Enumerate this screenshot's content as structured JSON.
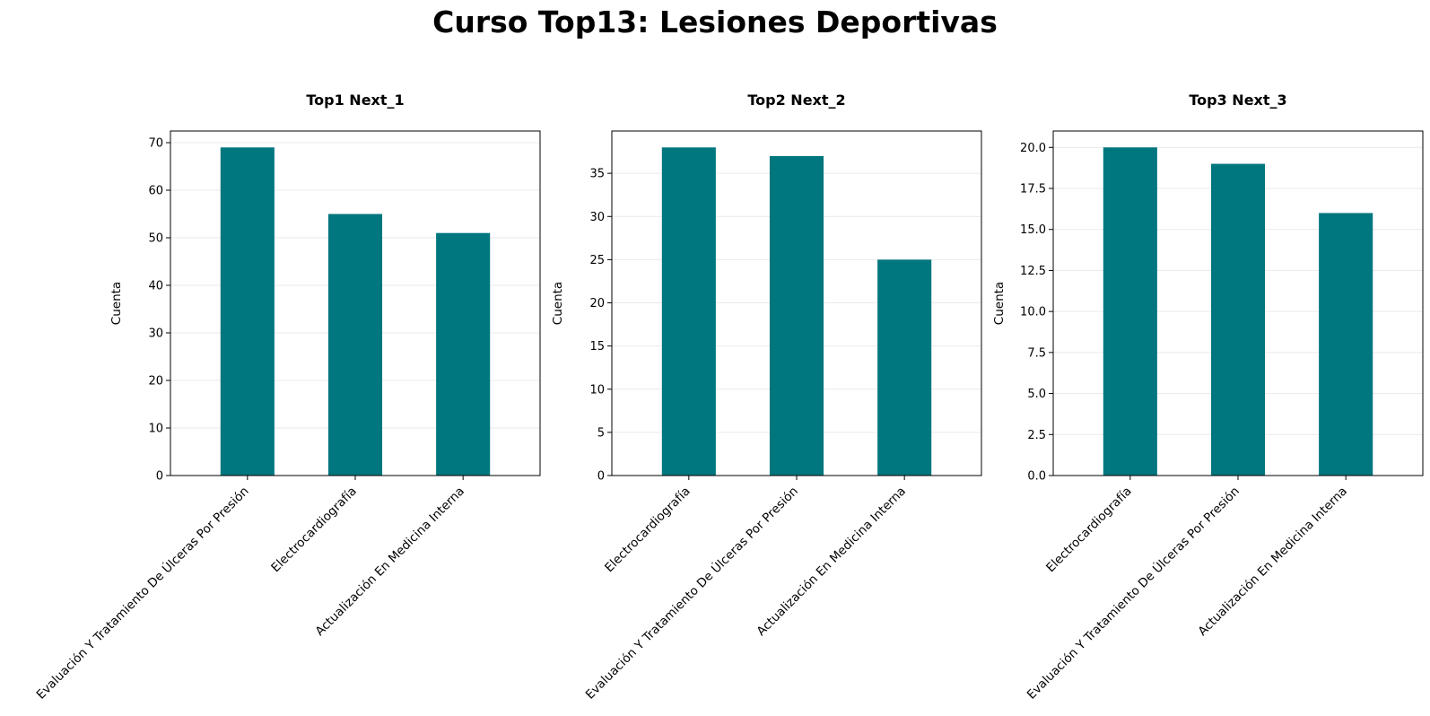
{
  "figure": {
    "suptitle": "Curso Top13: Lesiones Deportivas",
    "bar_color": "#00767e"
  },
  "chart_data": [
    {
      "type": "bar",
      "title": "Top1 Next_1",
      "xlabel": "",
      "ylabel": "Cuenta",
      "categories": [
        "Evaluación Y Tratamiento De Úlceras Por Presión",
        "Electrocardiografía",
        "Actualización En Medicina Interna"
      ],
      "values": [
        69,
        55,
        51
      ],
      "ylim": [
        0,
        72.45
      ],
      "yticks": [
        0,
        10,
        20,
        30,
        40,
        50,
        60,
        70
      ],
      "ytick_labels": [
        "0",
        "10",
        "20",
        "30",
        "40",
        "50",
        "60",
        "70"
      ],
      "grid": true,
      "legend": "none"
    },
    {
      "type": "bar",
      "title": "Top2 Next_2",
      "xlabel": "",
      "ylabel": "Cuenta",
      "categories": [
        "Electrocardiografía",
        "Evaluación Y Tratamiento De Úlceras Por Presión",
        "Actualización En Medicina Interna"
      ],
      "values": [
        38,
        37,
        25
      ],
      "ylim": [
        0,
        39.9
      ],
      "yticks": [
        0,
        5,
        10,
        15,
        20,
        25,
        30,
        35
      ],
      "ytick_labels": [
        "0",
        "5",
        "10",
        "15",
        "20",
        "25",
        "30",
        "35"
      ],
      "grid": true,
      "legend": "none"
    },
    {
      "type": "bar",
      "title": "Top3 Next_3",
      "xlabel": "",
      "ylabel": "Cuenta",
      "categories": [
        "Electrocardiografía",
        "Evaluación Y Tratamiento De Úlceras Por Presión",
        "Actualización En Medicina Interna"
      ],
      "values": [
        20,
        19,
        16
      ],
      "ylim": [
        0,
        21
      ],
      "yticks": [
        0,
        2.5,
        5,
        7.5,
        10,
        12.5,
        15,
        17.5,
        20
      ],
      "ytick_labels": [
        "0.0",
        "2.5",
        "5.0",
        "7.5",
        "10.0",
        "12.5",
        "15.0",
        "17.5",
        "20.0"
      ],
      "grid": true,
      "legend": "none"
    }
  ]
}
